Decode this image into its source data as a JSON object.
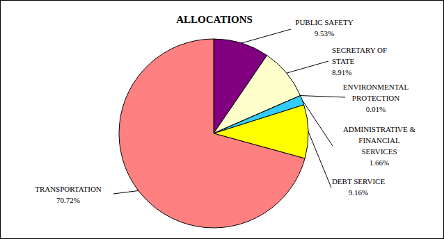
{
  "chart_data": {
    "type": "pie",
    "title": "ALLOCATIONS",
    "categories": [
      "PUBLIC SAFETY",
      "SECRETARY OF STATE",
      "ENVIRONMENTAL PROTECTION",
      "ADMINISTRATIVE & FINANCIAL SERVICES",
      "DEBT SERVICE",
      "TRANSPORTATION"
    ],
    "values": [
      9.53,
      8.91,
      0.01,
      1.66,
      9.16,
      70.72
    ],
    "value_labels": [
      "9.53%",
      "8.91%",
      "0.01%",
      "1.66%",
      "9.16%",
      "70.72%"
    ],
    "colors": [
      "#800080",
      "#ffffcc",
      "#00ffff",
      "#33ccff",
      "#ffff00",
      "#ff8080"
    ],
    "data_labels": true
  }
}
